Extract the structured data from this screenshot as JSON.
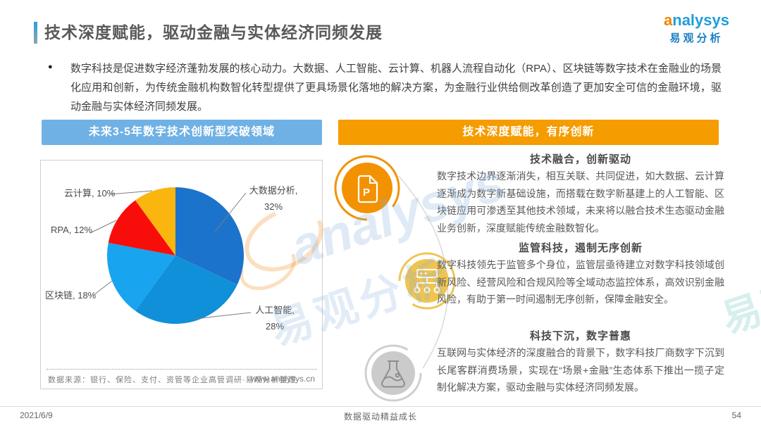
{
  "header": {
    "title": "技术深度赋能，驱动金融与实体经济同频发展",
    "logo_brand": "analysys",
    "logo_cn": "易观分析"
  },
  "intro": {
    "bullet": "●",
    "text": "数字科技是促进数字经济蓬勃发展的核心动力。大数据、人工智能、云计算、机器人流程自动化（RPA）、区块链等数字技术在金融业的场景化应用和创新，为传统金融机构数智化转型提供了更具场景化落地的解决方案，为金融行业供给侧改革创造了更加安全可信的金融环境，驱动金融与实体经济同频发展。"
  },
  "left_panel": {
    "header": "未来3-5年数字技术创新型突破领域",
    "source": "数据来源：银行、保险、支付、资管等企业高管调研·易观分析整理",
    "website": "www.analysys.cn",
    "pie_labels": {
      "bigdata_l1": "大数据分析,",
      "bigdata_l2": "32%",
      "ai_l1": "人工智能,",
      "ai_l2": "28%",
      "blockchain": "区块链, 18%",
      "rpa": "RPA, 12%",
      "cloud": "云计算, 10%"
    }
  },
  "chart_data": {
    "type": "pie",
    "title": "未来3-5年数字技术创新型突破领域",
    "labels": [
      "大数据分析",
      "人工智能",
      "区块链",
      "RPA",
      "云计算"
    ],
    "values": [
      32,
      28,
      18,
      12,
      10
    ],
    "unit": "%",
    "colors": [
      "#1c73cb",
      "#1090d8",
      "#18a4ef",
      "#f90d0b",
      "#fbb50f"
    ],
    "start_angle_deg": 0,
    "direction": "clockwise",
    "legend_position": "callout-labels",
    "source": "数据来源：银行、保险、支付、资管等企业高管调研·易观分析整理"
  },
  "right_panel": {
    "header": "技术深度赋能，有序创新",
    "sections": [
      {
        "icon": "document-p",
        "title": "技术融合，创新驱动",
        "body": "数字技术边界逐渐消失，相互关联、共同促进，如大数据、云计算逐渐成为数字新基础设施，而搭载在数字新基建上的人工智能、区块链应用可渗透至其他技术领域，未来将以融合技术生态驱动金融业务创新，深度赋能传统金融数智化。"
      },
      {
        "icon": "org-chart",
        "title": "监管科技，遏制无序创新",
        "body": "数字科技领先于监管多个身位，监管层亟待建立对数字科技领域创新风险、经营风险和合规风险等全域动态监控体系，高效识别金融风险，有助于第一时间遏制无序创新，保障金融安全。"
      },
      {
        "icon": "flask",
        "title": "科技下沉，数字普惠",
        "body": "互联网与实体经济的深度融合的背景下，数字科技厂商数字下沉到长尾客群消费场景，实现在“场景+金融”生态体系下推出一揽子定制化解决方案，驱动金融与实体经济同频发展。"
      }
    ]
  },
  "watermark": {
    "en": "analysys",
    "cn": "易观分析",
    "teal": "易观"
  },
  "footer": {
    "date": "2021/6/9",
    "motto": "数据驱动精益成长",
    "page": "54"
  },
  "colors": {
    "panel_header_blue": "#6fb1e4",
    "panel_header_orange": "#f59c00",
    "icon_orange": "#f39200",
    "icon_gold": "#efc451",
    "icon_gray": "#cbcbcb",
    "title_text": "#595959",
    "body_text": "#595959"
  }
}
